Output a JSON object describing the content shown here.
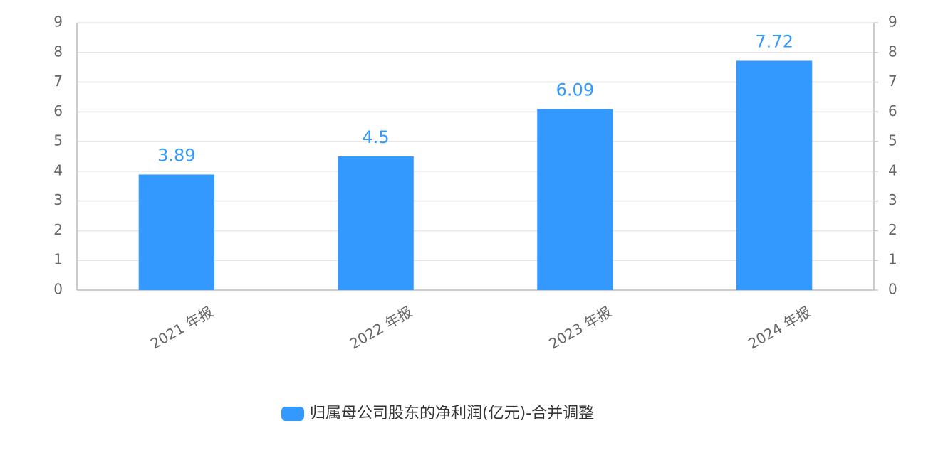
{
  "chart_data": {
    "type": "bar",
    "categories": [
      "2021 年报",
      "2022 年报",
      "2023 年报",
      "2024 年报"
    ],
    "series": [
      {
        "name": "归属母公司股东的净利润(亿元)-合并调整",
        "color": "#3399ff",
        "values": [
          3.89,
          4.5,
          6.09,
          7.72
        ]
      }
    ],
    "ylim": [
      0,
      9
    ],
    "yticks": [
      0,
      1,
      2,
      3,
      4,
      5,
      6,
      7,
      8,
      9
    ],
    "y2lim": [
      0,
      9
    ],
    "y2ticks": [
      0,
      1,
      2,
      3,
      4,
      5,
      6,
      7,
      8,
      9
    ],
    "grid": true,
    "legend": "bottom"
  }
}
